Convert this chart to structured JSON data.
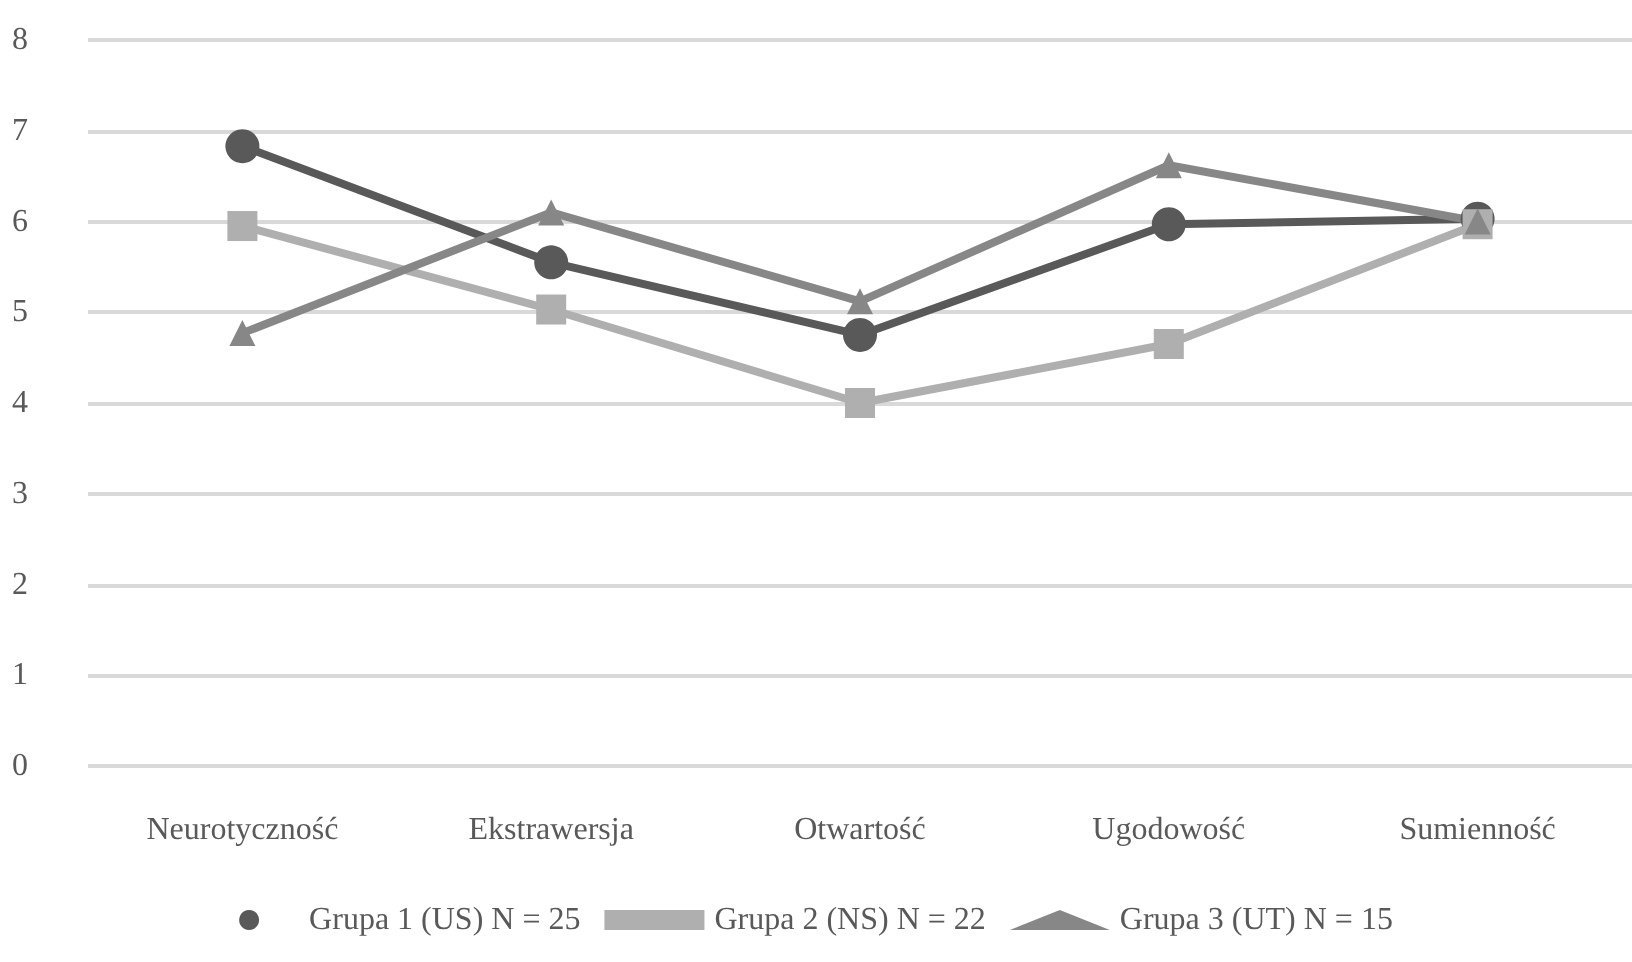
{
  "chart_data": {
    "type": "line",
    "categories": [
      "Neurotyczność",
      "Ekstrawersja",
      "Otwartość",
      "Ugodowość",
      "Sumienność"
    ],
    "series": [
      {
        "name": "Grupa 1 (US) N = 25",
        "color": "#595959",
        "marker": "circle",
        "values": [
          6.83,
          5.55,
          4.75,
          5.97,
          6.03
        ]
      },
      {
        "name": "Grupa 2 (NS) N = 22",
        "color": "#afafaf",
        "marker": "square",
        "values": [
          5.95,
          5.03,
          4.0,
          4.65,
          5.97
        ]
      },
      {
        "name": "Grupa 3 (UT) N = 15",
        "color": "#878787",
        "marker": "triangle",
        "values": [
          4.77,
          6.1,
          5.12,
          6.62,
          6.0
        ]
      }
    ],
    "ylim": [
      0,
      8
    ],
    "yticks": [
      0,
      1,
      2,
      3,
      4,
      5,
      6,
      7,
      8
    ],
    "grid": "y",
    "legend": "bottom",
    "line_style": "solid"
  }
}
